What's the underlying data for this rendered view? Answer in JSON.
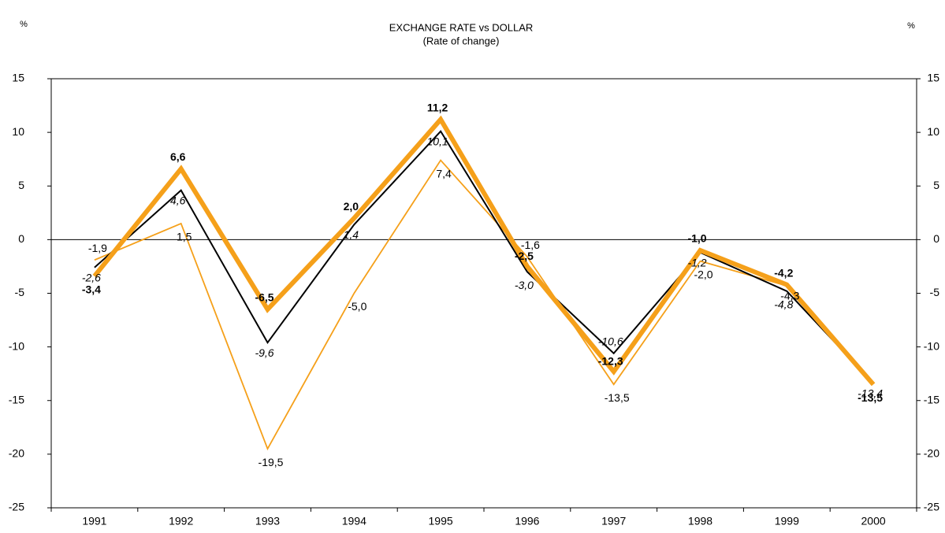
{
  "chart_data": {
    "type": "line",
    "title": "EXCHANGE RATE vs DOLLAR",
    "subtitle": "(Rate of change)",
    "y_label": "%",
    "y2_label": "%",
    "categories": [
      "1991",
      "1992",
      "1993",
      "1994",
      "1995",
      "1996",
      "1997",
      "1998",
      "1999",
      "2000"
    ],
    "series": [
      {
        "color": "#f5a01a",
        "line_width": 1.8,
        "label_style": "normal",
        "values": [
          -1.9,
          1.5,
          -19.5,
          -5.0,
          7.4,
          -1.6,
          -13.5,
          -2.0,
          -4.3,
          -13.3
        ],
        "value_labels": [
          "-1,9",
          "1,5",
          "-19,5",
          "-5,0",
          "7,4",
          "-1,6",
          "-13,5",
          "-2,0",
          "-4,3",
          null
        ]
      },
      {
        "color": "#000000",
        "line_width": 2,
        "label_style": "italic",
        "values": [
          -2.6,
          4.6,
          -9.6,
          1.4,
          10.1,
          -3.0,
          -10.6,
          -1.2,
          -4.8,
          -13.4
        ],
        "value_labels": [
          "-2,6",
          "4,6",
          "-9,6",
          "1,4",
          "10,1",
          "-3,0",
          "-10,6",
          "-1,2",
          "-4,8",
          "-13,4"
        ]
      },
      {
        "color": "#f5a01a",
        "line_width": 6,
        "label_style": "bold",
        "values": [
          -3.4,
          6.6,
          -6.5,
          2.0,
          11.2,
          -2.5,
          -12.3,
          -1.0,
          -4.2,
          -13.5
        ],
        "value_labels": [
          "-3,4",
          "6,6",
          "-6,5",
          "2,0",
          "11,2",
          "-2,5",
          "-12,3",
          "-1,0",
          "-4,2",
          "-13,5"
        ]
      }
    ],
    "ylim": [
      -25,
      15
    ],
    "yticks": [
      -25,
      -20,
      -15,
      -10,
      -5,
      0,
      5,
      10,
      15
    ],
    "y2lim": [
      -25,
      15
    ],
    "y2ticks": [
      -25,
      -20,
      -15,
      -10,
      -5,
      0,
      5,
      10,
      15
    ],
    "zero_line": true
  }
}
